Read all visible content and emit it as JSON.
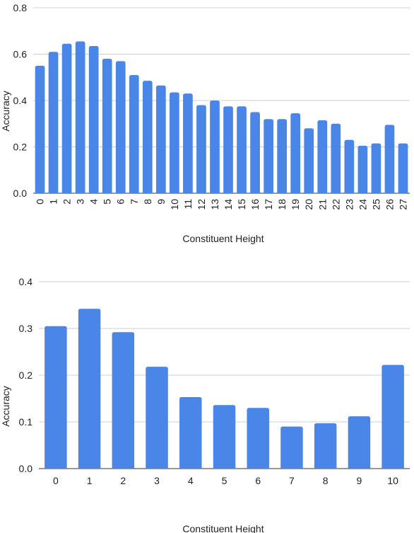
{
  "chart_data": [
    {
      "type": "bar",
      "xlabel": "Constituent Height",
      "ylabel": "Accuracy",
      "ylim": [
        0,
        0.8
      ],
      "yticks": [
        "0.0",
        "0.2",
        "0.4",
        "0.6",
        "0.8"
      ],
      "grid": true,
      "x_tick_rotation": "vertical",
      "bar_color": "#4a86e8",
      "categories": [
        "0",
        "1",
        "2",
        "3",
        "4",
        "5",
        "6",
        "7",
        "8",
        "9",
        "10",
        "11",
        "12",
        "13",
        "14",
        "15",
        "16",
        "17",
        "18",
        "19",
        "20",
        "21",
        "22",
        "23",
        "24",
        "25",
        "26",
        "27"
      ],
      "values": [
        0.55,
        0.61,
        0.645,
        0.655,
        0.635,
        0.58,
        0.57,
        0.51,
        0.485,
        0.465,
        0.435,
        0.43,
        0.38,
        0.4,
        0.375,
        0.375,
        0.35,
        0.32,
        0.32,
        0.345,
        0.28,
        0.315,
        0.3,
        0.23,
        0.205,
        0.215,
        0.295,
        0.215
      ]
    },
    {
      "type": "bar",
      "xlabel": "Constituent Height",
      "ylabel": "Accuracy",
      "ylim": [
        0,
        0.4
      ],
      "yticks": [
        "0.0",
        "0.1",
        "0.2",
        "0.3",
        "0.4"
      ],
      "grid": true,
      "x_tick_rotation": "horizontal",
      "bar_color": "#4a86e8",
      "categories": [
        "0",
        "1",
        "2",
        "3",
        "4",
        "5",
        "6",
        "7",
        "8",
        "9",
        "10"
      ],
      "values": [
        0.305,
        0.342,
        0.292,
        0.218,
        0.153,
        0.136,
        0.13,
        0.09,
        0.097,
        0.112,
        0.222
      ]
    }
  ]
}
